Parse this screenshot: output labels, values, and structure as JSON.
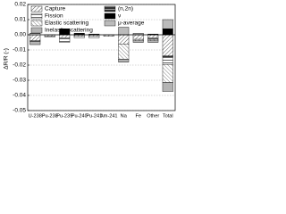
{
  "chart_data": {
    "type": "stacked-bar",
    "y_label": "ΔR/R (-)",
    "categories": [
      "U-238",
      "Pu-238",
      "Pu-239",
      "Pu-240",
      "Pu-241",
      "Am-241",
      "Na",
      "Fe",
      "Other",
      "Total"
    ],
    "series": [
      {
        "name": "Capture",
        "color": "#555555",
        "hatch": "diag",
        "values": [
          -0.004,
          -0.001,
          -0.002,
          -0.001,
          -0.001,
          -0.001,
          -0.006,
          -0.003,
          -0.002,
          -0.014
        ]
      },
      {
        "name": "(n,2n)",
        "color": "#333333",
        "hatch": "cross",
        "values": [
          -0.0005,
          0,
          0,
          0,
          0,
          0,
          0,
          0,
          0,
          -0.0005
        ]
      },
      {
        "name": "Fission",
        "color": "#444444",
        "hatch": "hlines",
        "values": [
          0.001,
          -0.0005,
          -0.003,
          -0.001,
          -0.001,
          0,
          0,
          0,
          -0.001,
          -0.005
        ]
      },
      {
        "name": "ν",
        "color": "#000000",
        "hatch": "solid",
        "values": [
          0,
          0,
          0.004,
          0.001,
          0.0005,
          0,
          0,
          0,
          0.0005,
          0.004
        ]
      },
      {
        "name": "Elastic scattering",
        "color": "#666666",
        "hatch": "antidiag",
        "values": [
          0,
          0,
          0,
          0,
          0,
          0,
          -0.01,
          -0.001,
          -0.001,
          -0.012
        ]
      },
      {
        "name": "μ-average",
        "color": "#bbbbbb",
        "hatch": "solid",
        "values": [
          0,
          0,
          0,
          0,
          0,
          0,
          0.005,
          0.001,
          0,
          0.006
        ]
      },
      {
        "name": "Inelastic scattering",
        "color": "#555555",
        "hatch": "dense",
        "values": [
          -0.002,
          0,
          0,
          0,
          0,
          0,
          -0.002,
          -0.001,
          -0.001,
          -0.006
        ]
      }
    ],
    "ylim": [
      -0.05,
      0.02
    ],
    "yticks": [
      -0.05,
      -0.04,
      -0.03,
      -0.02,
      -0.01,
      {
        "value": 0,
        "label": "0.00"
      },
      0.01,
      0.02
    ],
    "grid": true
  }
}
